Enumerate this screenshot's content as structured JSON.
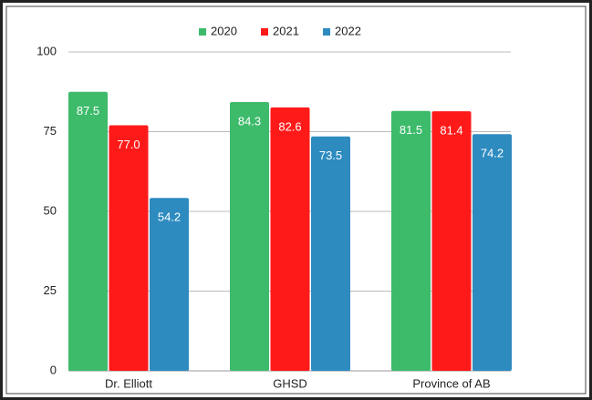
{
  "chart_data": {
    "type": "bar",
    "categories": [
      "Dr. Elliott",
      "GHSD",
      "Province of AB"
    ],
    "series": [
      {
        "name": "2020",
        "color": "#3dbb6b",
        "values": [
          87.5,
          84.3,
          81.5
        ]
      },
      {
        "name": "2021",
        "color": "#ff1a1a",
        "values": [
          77.0,
          82.6,
          81.4
        ],
        "value_labels": [
          "77.0",
          "82.6",
          "81.4"
        ]
      },
      {
        "name": "2022",
        "color": "#2e8bc0",
        "values": [
          54.2,
          73.5,
          74.2
        ]
      }
    ],
    "ylim": [
      0,
      100
    ],
    "yticks": [
      0,
      25,
      50,
      75,
      100
    ],
    "grid": true,
    "legend": "top"
  }
}
